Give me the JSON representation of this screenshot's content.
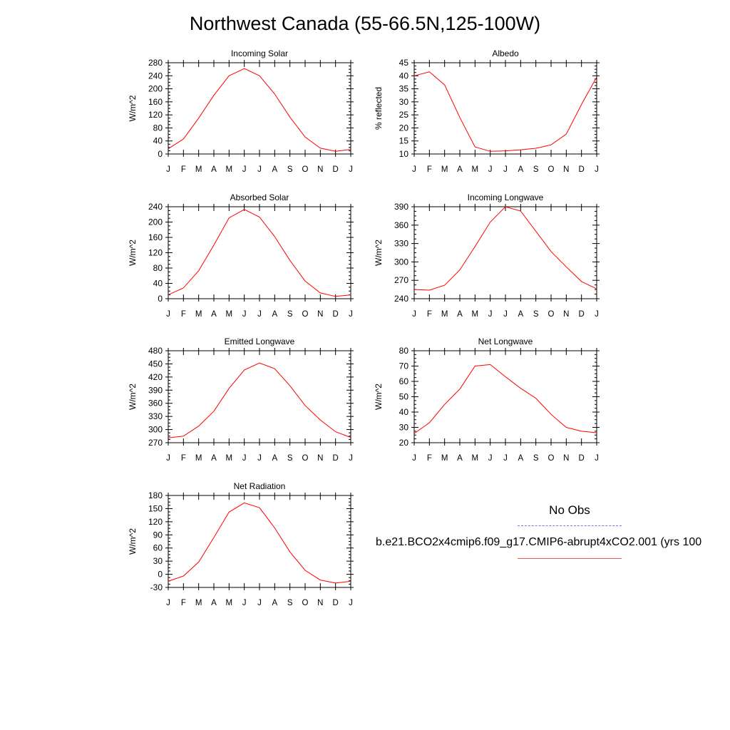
{
  "title": "Northwest Canada (55-66.5N,125-100W)",
  "legend": {
    "obs_label": "No Obs",
    "case_label": "b.e21.BCO2x4cmip6.f09_g17.CMIP6-abrupt4xCO2.001 (yrs 100",
    "obs_color": "#7777dd",
    "case_color": "#ff0000"
  },
  "chart_data": [
    {
      "type": "line",
      "title": "Incoming Solar",
      "ylabel": "W/m^2",
      "categories": [
        "J",
        "F",
        "M",
        "A",
        "M",
        "J",
        "J",
        "A",
        "S",
        "O",
        "N",
        "D",
        "J"
      ],
      "yticks": [
        0,
        40,
        80,
        120,
        160,
        200,
        240,
        280
      ],
      "ylim": [
        0,
        280
      ],
      "values": [
        16,
        46,
        110,
        180,
        240,
        262,
        240,
        184,
        113,
        52,
        18,
        8,
        14
      ]
    },
    {
      "type": "line",
      "title": "Albedo",
      "ylabel": "% reflected",
      "categories": [
        "J",
        "F",
        "M",
        "A",
        "M",
        "J",
        "J",
        "A",
        "S",
        "O",
        "N",
        "D",
        "J"
      ],
      "yticks": [
        10,
        15,
        20,
        25,
        30,
        35,
        40,
        45
      ],
      "ylim": [
        10,
        45
      ],
      "values": [
        40,
        41.5,
        36.5,
        24,
        12.7,
        11,
        11.2,
        11.6,
        12.2,
        13.5,
        17.6,
        29,
        39.5
      ]
    },
    {
      "type": "line",
      "title": "Absorbed Solar",
      "ylabel": "W/m^2",
      "categories": [
        "J",
        "F",
        "M",
        "A",
        "M",
        "J",
        "J",
        "A",
        "S",
        "O",
        "N",
        "D",
        "J"
      ],
      "yticks": [
        0,
        40,
        80,
        120,
        160,
        200,
        240
      ],
      "ylim": [
        0,
        240
      ],
      "values": [
        10,
        28,
        73,
        140,
        211,
        233,
        213,
        162,
        100,
        46,
        15,
        6,
        10
      ]
    },
    {
      "type": "line",
      "title": "Incoming Longwave",
      "ylabel": "W/m^2",
      "categories": [
        "J",
        "F",
        "M",
        "A",
        "M",
        "J",
        "J",
        "A",
        "S",
        "O",
        "N",
        "D",
        "J"
      ],
      "yticks": [
        240,
        270,
        300,
        330,
        360,
        390
      ],
      "ylim": [
        240,
        390
      ],
      "values": [
        255,
        254,
        262,
        287,
        325,
        365,
        390,
        383,
        350,
        317,
        292,
        268,
        256
      ]
    },
    {
      "type": "line",
      "title": "Emitted Longwave",
      "ylabel": "W/m^2",
      "categories": [
        "J",
        "F",
        "M",
        "A",
        "M",
        "J",
        "J",
        "A",
        "S",
        "O",
        "N",
        "D",
        "J"
      ],
      "yticks": [
        270,
        300,
        330,
        360,
        390,
        420,
        450,
        480
      ],
      "ylim": [
        270,
        480
      ],
      "values": [
        281,
        285,
        308,
        342,
        394,
        436,
        452,
        439,
        400,
        355,
        322,
        295,
        282
      ]
    },
    {
      "type": "line",
      "title": "Net Longwave",
      "ylabel": "W/m^2",
      "categories": [
        "J",
        "F",
        "M",
        "A",
        "M",
        "J",
        "J",
        "A",
        "S",
        "O",
        "N",
        "D",
        "J"
      ],
      "yticks": [
        20,
        30,
        40,
        50,
        60,
        70,
        80
      ],
      "ylim": [
        20,
        80
      ],
      "values": [
        26,
        33,
        45,
        55,
        70,
        71,
        63,
        55.5,
        49,
        38.5,
        30,
        27.5,
        26.5
      ]
    },
    {
      "type": "line",
      "title": "Net Radiation",
      "ylabel": "W/m^2",
      "categories": [
        "J",
        "F",
        "M",
        "A",
        "M",
        "J",
        "J",
        "A",
        "S",
        "O",
        "N",
        "D",
        "J"
      ],
      "yticks": [
        -30,
        0,
        30,
        60,
        90,
        120,
        150,
        180
      ],
      "ylim": [
        -30,
        180
      ],
      "values": [
        -16,
        -4,
        28,
        84,
        142,
        163,
        152,
        106,
        51,
        9,
        -13,
        -20,
        -16
      ]
    }
  ]
}
